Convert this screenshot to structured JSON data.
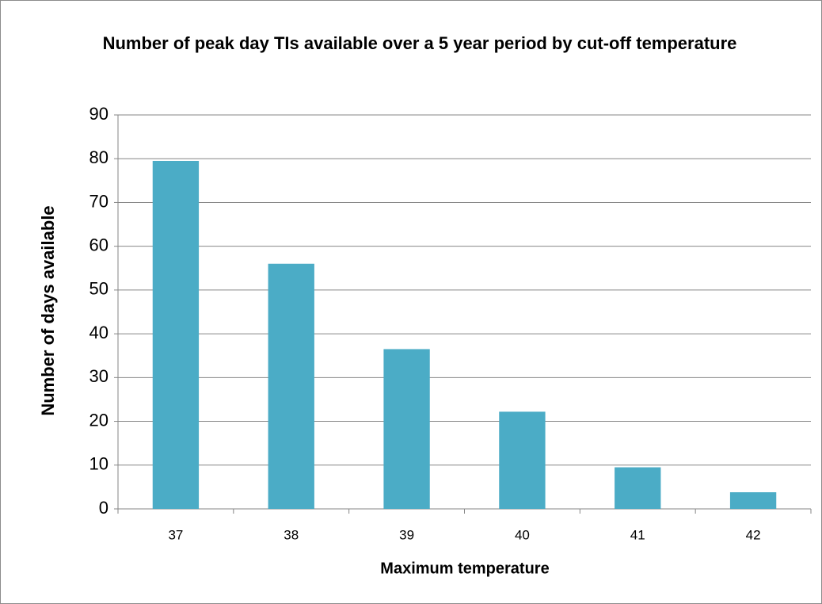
{
  "chart_data": {
    "type": "bar",
    "title": "Number of peak day TIs available over a 5 year period by cut-off temperature",
    "x_label": "Maximum temperature",
    "y_label": "Number of days available",
    "categories": [
      "37",
      "38",
      "39",
      "40",
      "41",
      "42"
    ],
    "values": [
      79.5,
      56,
      36.5,
      22.2,
      9.5,
      3.8
    ],
    "color": "#4bacc6",
    "ylim": [
      0,
      90
    ],
    "yticks": [
      0,
      10,
      20,
      30,
      40,
      50,
      60,
      70,
      80,
      90
    ],
    "grid": true
  }
}
